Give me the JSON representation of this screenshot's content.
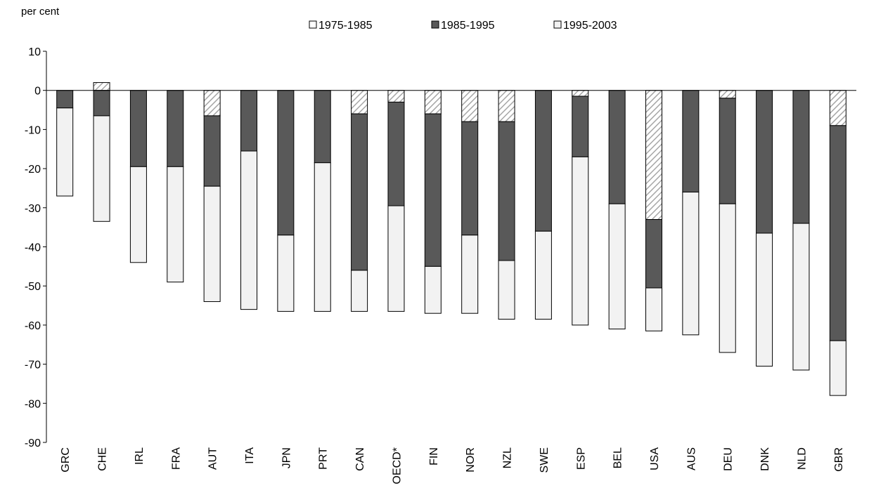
{
  "chart_data": {
    "type": "bar",
    "stacked": true,
    "unit_label": "per cent",
    "categories": [
      "GRC",
      "CHE",
      "IRL",
      "FRA",
      "AUT",
      "ITA",
      "JPN",
      "PRT",
      "CAN",
      "OECD*",
      "FIN",
      "NOR",
      "NZL",
      "SWE",
      "ESP",
      "BEL",
      "USA",
      "AUS",
      "DEU",
      "DNK",
      "NLD",
      "GBR"
    ],
    "series": [
      {
        "name": "1975-1985",
        "style": "hatched",
        "color": "#ffffff",
        "values": [
          0,
          2,
          0,
          0,
          -6.5,
          0,
          0,
          0,
          -6,
          -3,
          -6,
          -8,
          -8,
          0,
          -1.5,
          0,
          -33,
          0,
          -2,
          0,
          0,
          -9
        ]
      },
      {
        "name": "1985-1995",
        "style": "solid",
        "color": "#595959",
        "values": [
          -4.5,
          -6.5,
          -19.5,
          -19.5,
          -18,
          -15.5,
          -37,
          -18.5,
          -40,
          -26.5,
          -39,
          -29,
          -35.5,
          -36,
          -15.5,
          -29,
          -17.5,
          -26,
          -27,
          -36.5,
          -34,
          -55
        ]
      },
      {
        "name": "1995-2003",
        "style": "solid",
        "color": "#f2f2f2",
        "values": [
          -22.5,
          -27,
          -24.5,
          -29.5,
          -29.5,
          -40.5,
          -19.5,
          -38,
          -10.5,
          -27,
          -12,
          -20,
          -15,
          -22.5,
          -43,
          -32,
          -11,
          -36.5,
          -38,
          -34,
          -37.5,
          -14
        ]
      }
    ],
    "ylim": [
      -90,
      10
    ],
    "yticks": [
      "10",
      "0",
      "-10",
      "-20",
      "-30",
      "-40",
      "-50",
      "-60",
      "-70",
      "-80",
      "-90"
    ],
    "grid": false,
    "legend_position": "top-center"
  }
}
